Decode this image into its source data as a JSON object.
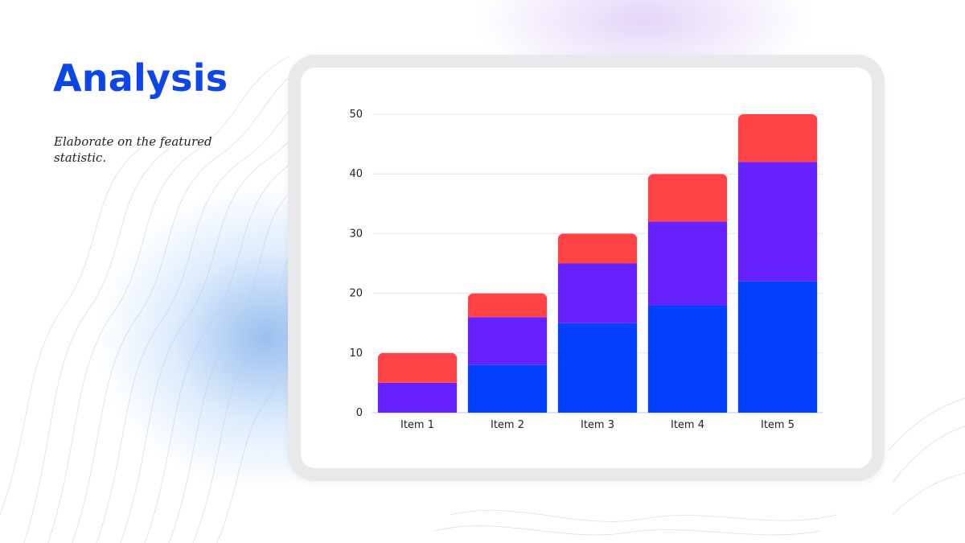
{
  "slide": {
    "title": "Analysis",
    "subtitle": "Elaborate on the featured statistic."
  },
  "colors": {
    "title": "#0c46e6",
    "series_1": "#0441ff",
    "series_2": "#6621ff",
    "series_3": "#ff4347"
  },
  "chart_data": {
    "type": "bar",
    "stacked": true,
    "categories": [
      "Item 1",
      "Item 2",
      "Item 3",
      "Item 4",
      "Item 5"
    ],
    "series": [
      {
        "values": [
          0,
          8,
          15,
          18,
          22
        ],
        "color": "#0441ff"
      },
      {
        "values": [
          5,
          8,
          10,
          14,
          20
        ],
        "color": "#6621ff"
      },
      {
        "values": [
          5,
          4,
          5,
          8,
          8
        ],
        "color": "#ff4347"
      }
    ],
    "ylim": [
      0,
      50
    ],
    "yticks": [
      0,
      10,
      20,
      30,
      40,
      50
    ],
    "grid": true,
    "legend": "none"
  }
}
